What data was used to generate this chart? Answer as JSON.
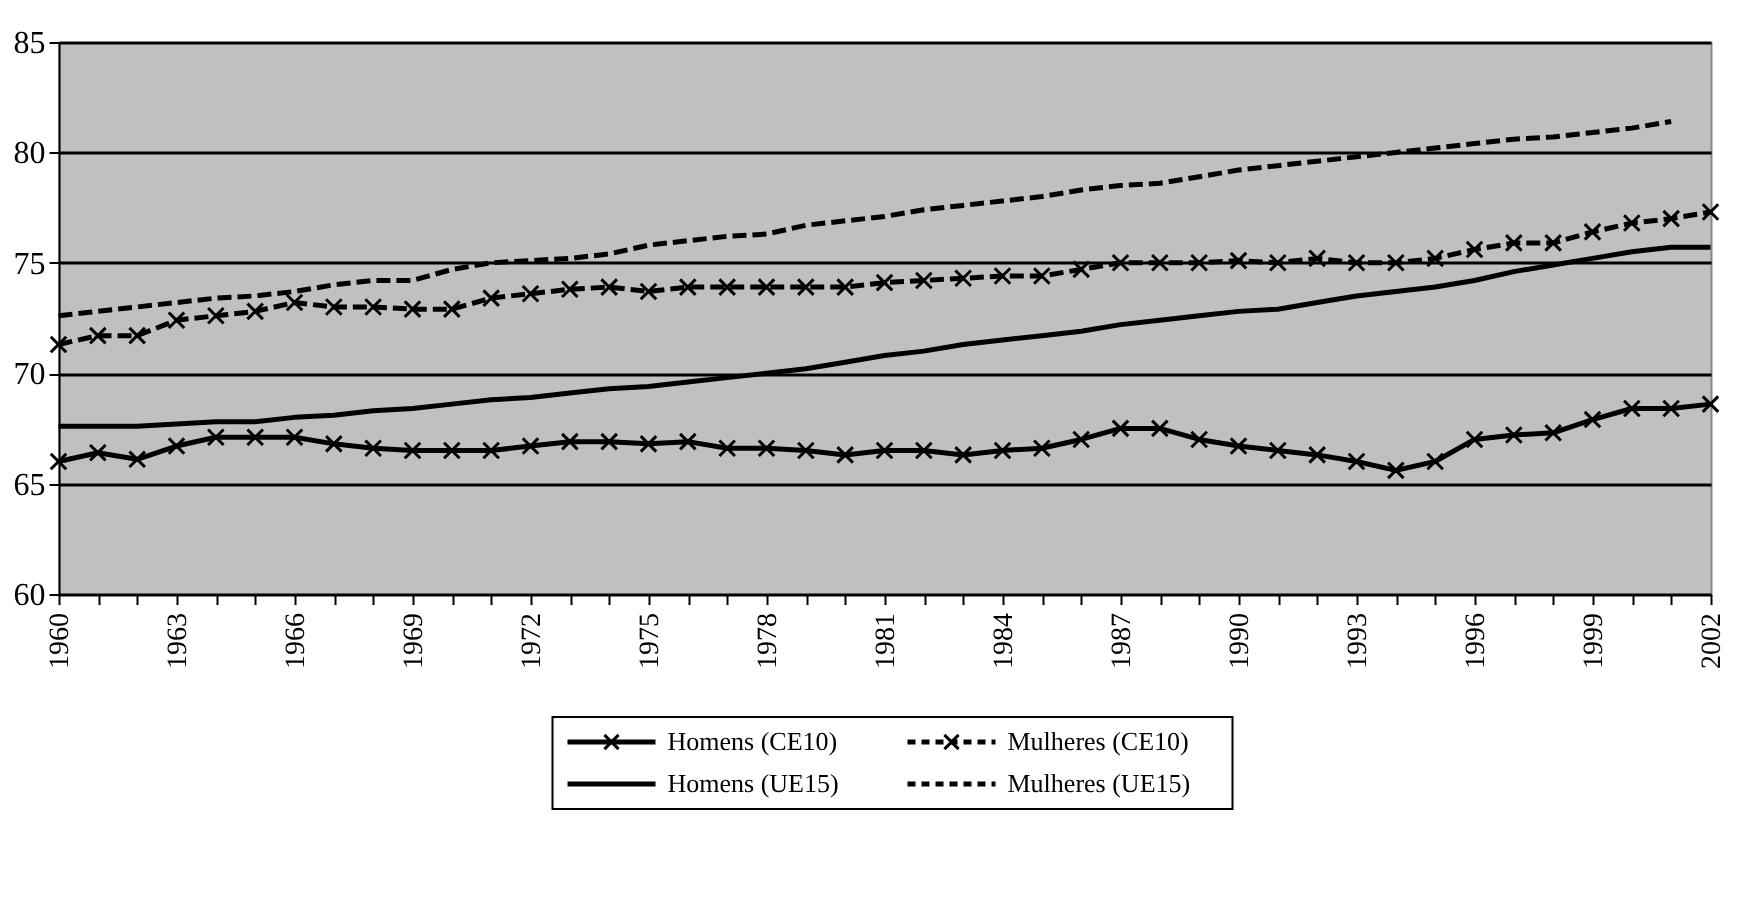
{
  "chart_data": {
    "type": "line",
    "categories": [
      "1960",
      null,
      null,
      "1963",
      null,
      null,
      "1966",
      null,
      null,
      "1969",
      null,
      null,
      "1972",
      null,
      null,
      "1975",
      null,
      null,
      "1978",
      null,
      null,
      "1981",
      null,
      null,
      "1984",
      null,
      null,
      "1987",
      null,
      null,
      "1990",
      null,
      null,
      "1993",
      null,
      null,
      "1996",
      null,
      null,
      "1999",
      null,
      null,
      "2002"
    ],
    "series": [
      {
        "name": "Homens (CE10)",
        "color": "#000000",
        "marker": "cross",
        "line_style": "solid",
        "values": [
          66.0,
          66.4,
          66.1,
          66.7,
          67.1,
          67.1,
          67.1,
          66.8,
          66.6,
          66.5,
          66.5,
          66.5,
          66.7,
          66.9,
          66.9,
          66.8,
          66.9,
          66.6,
          66.6,
          66.5,
          66.3,
          66.5,
          66.5,
          66.3,
          66.5,
          66.6,
          67.0,
          67.5,
          67.5,
          67.0,
          66.7,
          66.5,
          66.3,
          66.0,
          65.6,
          66.0,
          67.0,
          67.2,
          67.3,
          67.9,
          68.4,
          68.4,
          68.6
        ]
      },
      {
        "name": "Mulheres (CE10)",
        "color": "#000000",
        "marker": "cross",
        "line_style": "dashed",
        "values": [
          71.3,
          71.7,
          71.7,
          72.4,
          72.6,
          72.8,
          73.2,
          73.0,
          73.0,
          72.9,
          72.9,
          73.4,
          73.6,
          73.8,
          73.9,
          73.7,
          73.9,
          73.9,
          73.9,
          73.9,
          73.9,
          74.1,
          74.2,
          74.3,
          74.4,
          74.4,
          74.7,
          75.0,
          75.0,
          75.0,
          75.1,
          75.0,
          75.2,
          75.0,
          75.0,
          75.2,
          75.6,
          75.9,
          75.9,
          76.4,
          76.8,
          77.0,
          77.3
        ]
      },
      {
        "name": "Homens (UE15)",
        "color": "#000000",
        "marker": "none",
        "line_style": "solid",
        "values": [
          67.6,
          67.6,
          67.6,
          67.7,
          67.8,
          67.8,
          68.0,
          68.1,
          68.3,
          68.4,
          68.6,
          68.8,
          68.9,
          69.1,
          69.3,
          69.4,
          69.6,
          69.8,
          70.0,
          70.2,
          70.5,
          70.8,
          71.0,
          71.3,
          71.5,
          71.7,
          71.9,
          72.2,
          72.4,
          72.6,
          72.8,
          72.9,
          73.2,
          73.5,
          73.7,
          73.9,
          74.2,
          74.6,
          74.9,
          75.2,
          75.5,
          75.7,
          75.7
        ]
      },
      {
        "name": "Mulheres (UE15)",
        "color": "#000000",
        "marker": "none",
        "line_style": "dashed",
        "values": [
          72.6,
          72.8,
          73.0,
          73.2,
          73.4,
          73.5,
          73.7,
          74.0,
          74.2,
          74.2,
          74.7,
          75.0,
          75.1,
          75.2,
          75.4,
          75.8,
          76.0,
          76.2,
          76.3,
          76.7,
          76.9,
          77.1,
          77.4,
          77.6,
          77.8,
          78.0,
          78.3,
          78.5,
          78.6,
          78.9,
          79.2,
          79.4,
          79.6,
          79.8,
          80.0,
          80.2,
          80.4,
          80.6,
          80.7,
          80.9,
          81.1,
          81.4,
          null
        ]
      }
    ],
    "ylim": [
      60,
      85
    ],
    "yticks": [
      60,
      65,
      70,
      75,
      80,
      85
    ],
    "grid": "y",
    "legend": "bottom"
  }
}
